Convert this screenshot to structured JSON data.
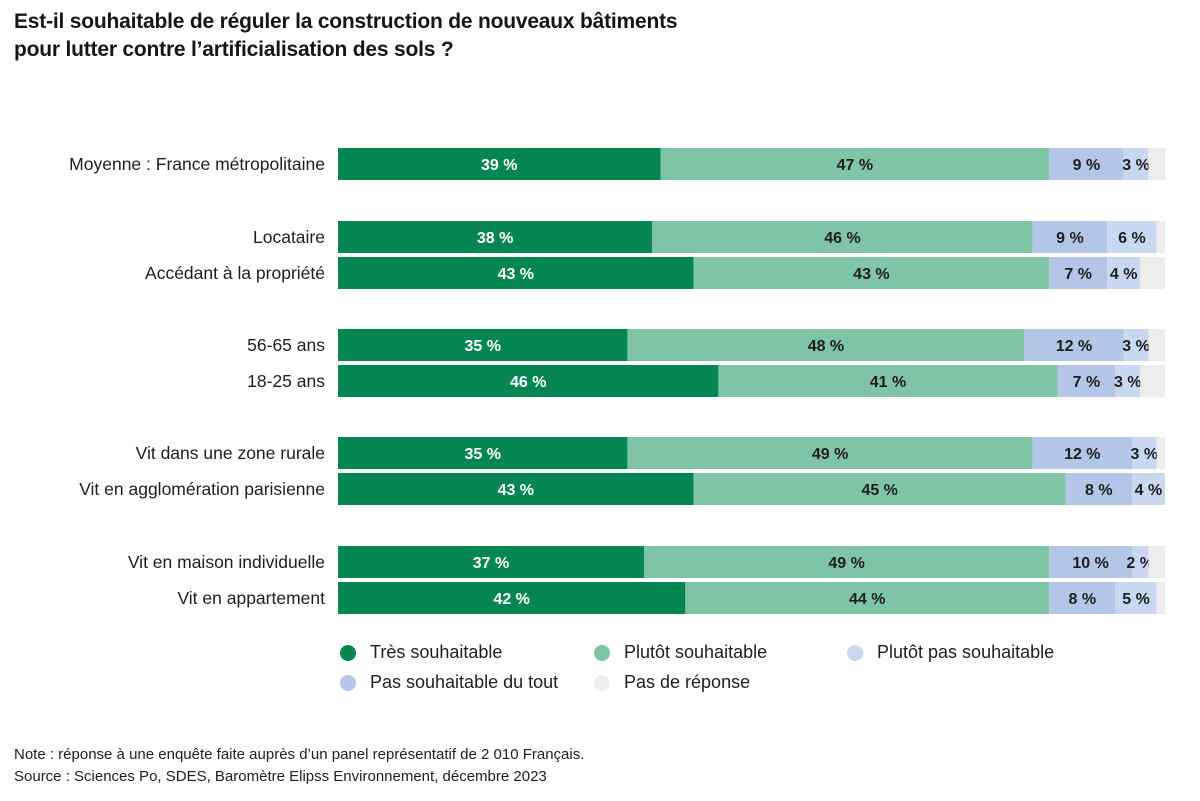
{
  "title": {
    "line1": "Est-il souhaitable de réguler la construction de nouveaux bâtiments",
    "line2": "pour lutter contre l’artificialisation des sols ?"
  },
  "chart_data": {
    "type": "bar",
    "orientation": "horizontal-stacked-100",
    "title": "Est-il souhaitable de réguler la construction de nouveaux bâtiments pour lutter contre l’artificialisation des sols ?",
    "xlabel": "",
    "ylabel": "",
    "xlim": [
      0,
      100
    ],
    "grid": false,
    "legend_position": "bottom",
    "categories": [
      "Moyenne : France métropolitaine",
      "Locataire",
      "Accédant à la propriété",
      "56-65 ans",
      "18-25 ans",
      "Vit dans une zone rurale",
      "Vit en agglomération parisienne",
      "Vit en maison individuelle",
      "Vit en appartement"
    ],
    "groups": [
      [
        0
      ],
      [
        1,
        2
      ],
      [
        3,
        4
      ],
      [
        5,
        6
      ],
      [
        7,
        8
      ]
    ],
    "series": [
      {
        "name": "Très souhaitable",
        "color": "#058650",
        "label_color": "#ffffff",
        "values": [
          39,
          38,
          43,
          35,
          46,
          35,
          43,
          37,
          42
        ]
      },
      {
        "name": "Plutôt souhaitable",
        "color": "#80c4a6",
        "label_color": "#1e1e1e",
        "values": [
          47,
          46,
          43,
          48,
          41,
          49,
          45,
          49,
          44
        ]
      },
      {
        "name": "Pas souhaitable du tout",
        "color": "#b4c6e8",
        "label_color": "#1e1e1e",
        "values": [
          9,
          9,
          7,
          12,
          7,
          12,
          8,
          10,
          8
        ]
      },
      {
        "name": "Plutôt pas souhaitable",
        "color": "#cad7f1",
        "label_color": "#1e1e1e",
        "values": [
          3,
          6,
          4,
          3,
          3,
          3,
          4,
          2,
          5
        ]
      },
      {
        "name": "Pas de réponse",
        "color": "#eceeee",
        "label_color": "#1e1e1e",
        "values": [
          2,
          1,
          3,
          2,
          3,
          1,
          0,
          2,
          1
        ]
      }
    ],
    "value_suffix": " %",
    "shown_labels_series": [
      0,
      1,
      2,
      3
    ]
  },
  "legend": {
    "items": [
      {
        "label": "Très souhaitable",
        "color": "#058650"
      },
      {
        "label": "Plutôt souhaitable",
        "color": "#80c4a6"
      },
      {
        "label": "Plutôt pas souhaitable",
        "color": "#cad7f1"
      },
      {
        "label": "Pas souhaitable du tout",
        "color": "#b4c6e8"
      },
      {
        "label": "Pas de réponse",
        "color": "#eceeee"
      }
    ]
  },
  "footer": {
    "note": "Note : réponse à une enquête faite auprès d’un panel représentatif de 2 010 Français.",
    "source": "Source : Sciences Po, SDES, Baromètre Elipss Environnement, décembre 2023"
  }
}
